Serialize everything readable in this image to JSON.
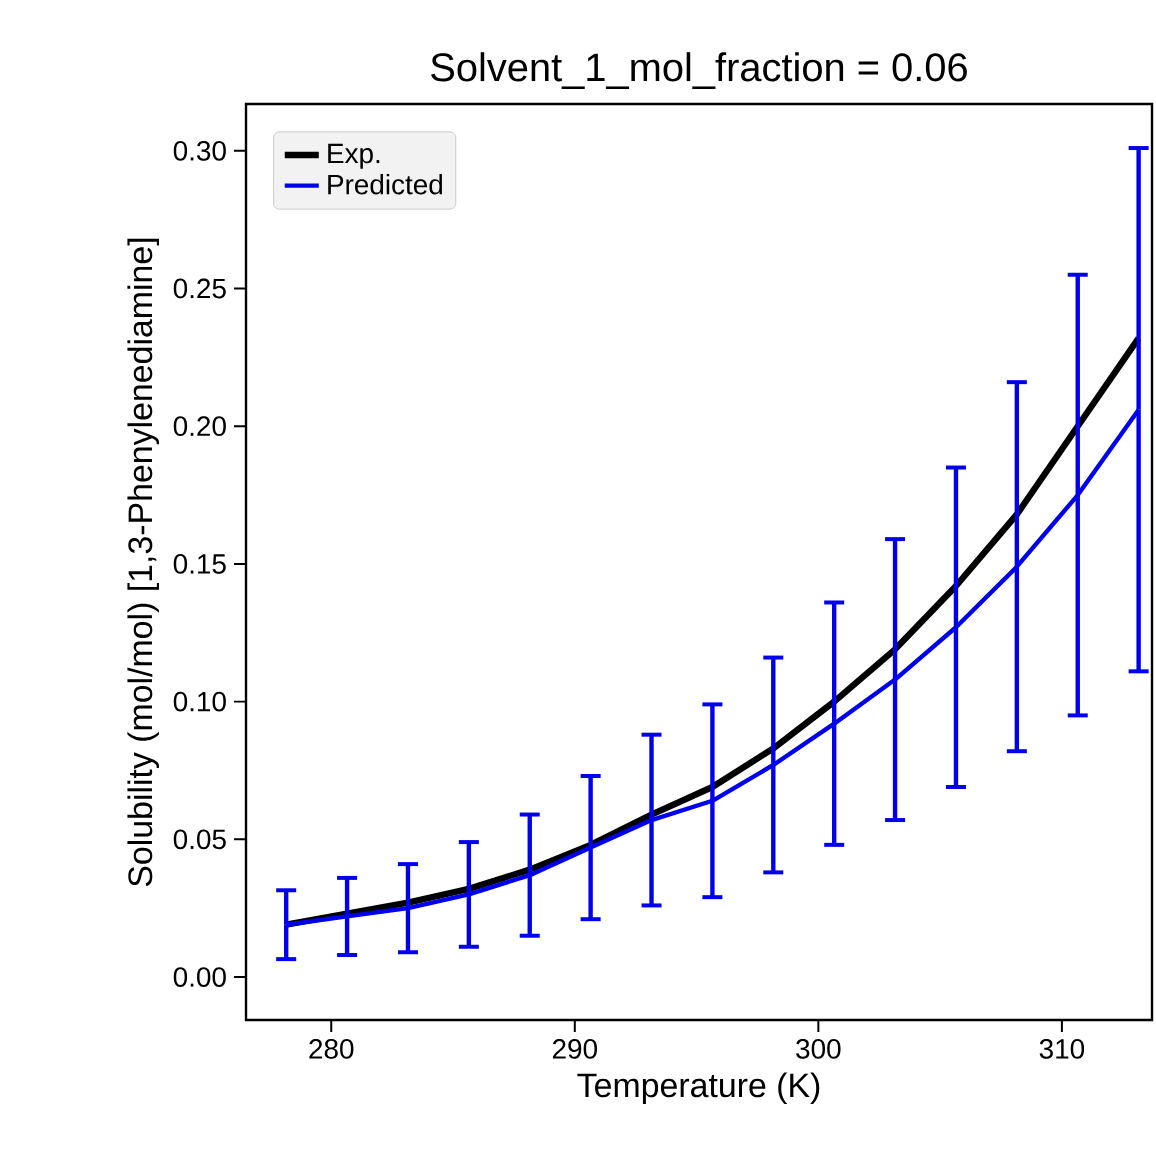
{
  "chart_data": {
    "type": "line",
    "title": "Solvent_1_mol_fraction = 0.06",
    "xlabel": "Temperature (K)",
    "ylabel": "Solubility (mol/mol) [1,3-Phenylenediamine]",
    "x": [
      278.15,
      280.65,
      283.15,
      285.65,
      288.15,
      290.65,
      293.15,
      295.65,
      298.15,
      300.65,
      303.15,
      305.65,
      308.15,
      310.65,
      313.15
    ],
    "series": [
      {
        "name": "Exp.",
        "color": "#000000",
        "values": [
          0.019,
          0.023,
          0.027,
          0.032,
          0.039,
          0.048,
          0.059,
          0.069,
          0.083,
          0.1,
          0.119,
          0.142,
          0.168,
          0.2,
          0.232
        ]
      },
      {
        "name": "Predicted",
        "color": "#0000ee",
        "values": [
          0.019,
          0.022,
          0.025,
          0.03,
          0.037,
          0.047,
          0.057,
          0.064,
          0.077,
          0.092,
          0.108,
          0.127,
          0.149,
          0.175,
          0.206
        ],
        "errors": [
          0.0125,
          0.014,
          0.016,
          0.019,
          0.022,
          0.026,
          0.031,
          0.035,
          0.039,
          0.044,
          0.051,
          0.058,
          0.067,
          0.08,
          0.095
        ]
      }
    ],
    "xlim": [
      276.5,
      313.7
    ],
    "ylim": [
      -0.0156,
      0.317
    ],
    "xticks": [
      280,
      290,
      300,
      310
    ],
    "yticks": [
      {
        "value": 0,
        "label": "0.00"
      },
      {
        "value": 0.05,
        "label": "0.05"
      },
      {
        "value": 0.1,
        "label": "0.10"
      },
      {
        "value": 0.15,
        "label": "0.15"
      },
      {
        "value": 0.2,
        "label": "0.20"
      },
      {
        "value": 0.25,
        "label": "0.25"
      },
      {
        "value": 0.3,
        "label": "0.30"
      }
    ],
    "legend": "top left",
    "grid": false,
    "marker": "none",
    "line_style": "solid"
  }
}
